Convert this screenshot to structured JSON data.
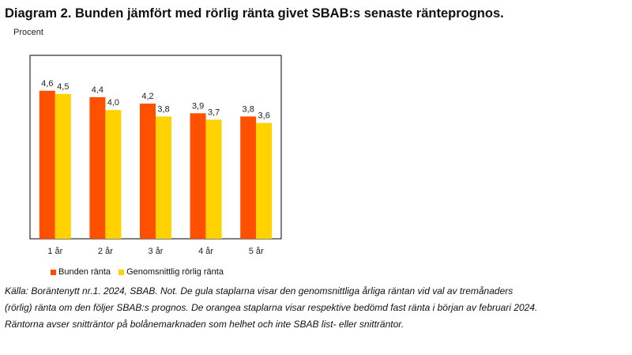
{
  "title": "Diagram 2. Bunden jämfört med rörlig ränta givet SBAB:s senaste ränteprognos.",
  "unit": "Procent",
  "source_lines": [
    "Källa: Boräntenytt nr.1. 2024, SBAB. Not. De gula staplarna visar den genomsnittliga årliga räntan vid val av tremånaders",
    "(rörlig) ränta om den följer SBAB:s prognos. De orangea staplarna visar respektive bedömd fast ränta i början av februari 2024.",
    "Räntorna avser snitträntor på bolånemarknaden som helhet och inte SBAB list- eller snitträntor."
  ],
  "chart_data": {
    "type": "bar",
    "categories": [
      "1 år",
      "2 år",
      "3 år",
      "4 år",
      "5 år"
    ],
    "series": [
      {
        "name": "Bunden ränta",
        "color": "#ff5000",
        "values": [
          4.6,
          4.4,
          4.2,
          3.9,
          3.8
        ],
        "labels": [
          "4,6",
          "4,4",
          "4,2",
          "3,9",
          "3,8"
        ]
      },
      {
        "name": "Genomsnittlig rörlig ränta",
        "color": "#ffd200",
        "values": [
          4.5,
          4.0,
          3.8,
          3.7,
          3.6
        ],
        "labels": [
          "4,5",
          "4,0",
          "3,8",
          "3,7",
          "3,6"
        ]
      }
    ],
    "ylim": [
      0,
      5.7
    ],
    "grid": false,
    "legend": "bottom"
  }
}
